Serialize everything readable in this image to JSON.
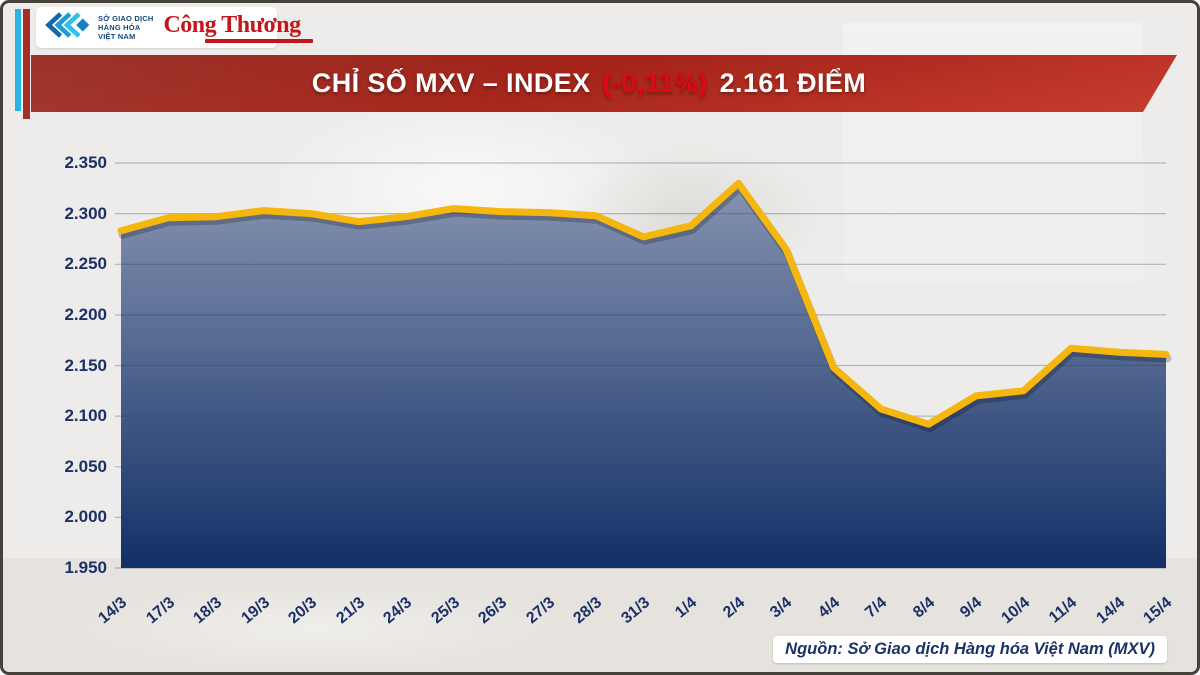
{
  "header": {
    "mxv_logo_lines": [
      "SỞ GIAO DỊCH",
      "HÀNG HÓA",
      "VIỆT NAM"
    ],
    "congthuong_logo": "Công Thương"
  },
  "banner": {
    "title_prefix": "CHỈ SỐ MXV – INDEX",
    "change": "(-0,11%)",
    "title_suffix": "2.161 ĐIỂM",
    "bg_color": "#a5241a",
    "change_color": "#e30613"
  },
  "chart_data": {
    "type": "area",
    "title": "CHỈ SỐ MXV – INDEX (-0,11%) 2.161 ĐIỂM",
    "categories": [
      "14/3",
      "17/3",
      "18/3",
      "19/3",
      "20/3",
      "21/3",
      "24/3",
      "25/3",
      "26/3",
      "27/3",
      "28/3",
      "31/3",
      "1/4",
      "2/4",
      "3/4",
      "4/4",
      "7/4",
      "8/4",
      "9/4",
      "10/4",
      "11/4",
      "14/4",
      "15/4"
    ],
    "values": [
      2283,
      2296,
      2297,
      2303,
      2300,
      2292,
      2297,
      2305,
      2302,
      2301,
      2298,
      2277,
      2288,
      2330,
      2265,
      2148,
      2107,
      2092,
      2120,
      2125,
      2167,
      2163,
      2161
    ],
    "unit": "ĐIỂM",
    "ylim": [
      1950,
      2350
    ],
    "ytick_step": 50,
    "ytick_labels": [
      "2.350",
      "2.300",
      "2.250",
      "2.200",
      "2.150",
      "2.100",
      "2.050",
      "2.000",
      "1.950"
    ],
    "grid": true,
    "legend": "none",
    "line_color": "#f5b60d",
    "fill_top_color": "#8d99b5",
    "fill_bottom_color": "#123067",
    "grid_color": "rgba(45,65,105,0.32)",
    "label_color": "#1b3067"
  },
  "source": {
    "text": "Nguồn: Sở Giao dịch Hàng hóa Việt Nam (MXV)"
  }
}
